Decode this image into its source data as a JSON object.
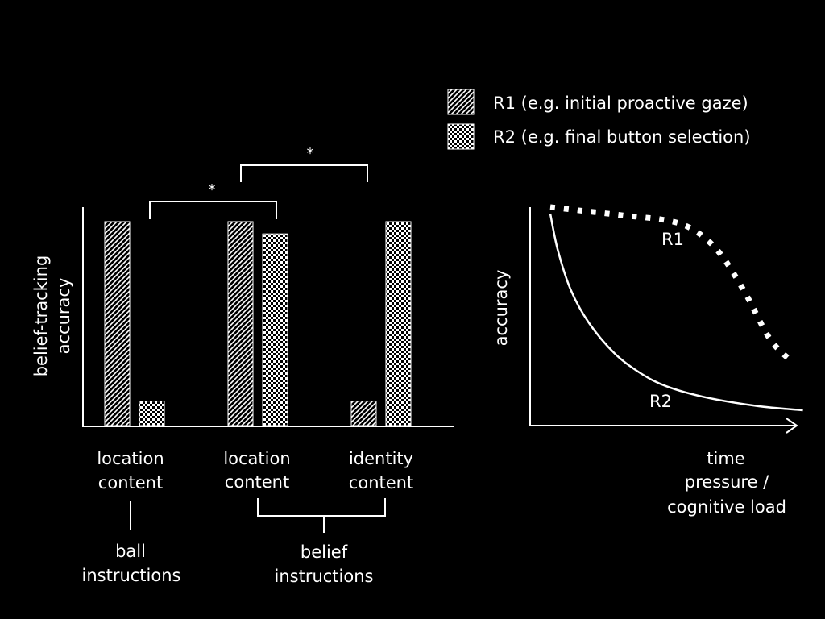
{
  "colors": {
    "background": "#000000",
    "foreground": "#ffffff"
  },
  "legend": {
    "placement": "top-right",
    "items": [
      {
        "key": "R1",
        "pattern": "hatch",
        "label": "R1 (e.g. initial proactive gaze)"
      },
      {
        "key": "R2",
        "pattern": "checker",
        "label": "R2 (e.g. final button selection)"
      }
    ]
  },
  "left_chart": {
    "ylabel_lines": [
      "belief-tracking",
      "accuracy"
    ],
    "ylim": [
      0,
      1
    ],
    "categories": [
      {
        "label_lines": [
          "location",
          "content"
        ]
      },
      {
        "label_lines": [
          "location",
          "content"
        ]
      },
      {
        "label_lines": [
          "identity",
          "content"
        ]
      }
    ],
    "groups": [
      {
        "label_lines": [
          "ball",
          "instructions"
        ],
        "categories": [
          0
        ]
      },
      {
        "label_lines": [
          "belief",
          "instructions"
        ],
        "categories": [
          1,
          2
        ]
      }
    ],
    "significance": [
      {
        "from": [
          0,
          "R2"
        ],
        "to": [
          1,
          "R2"
        ],
        "label": "*"
      },
      {
        "from": [
          1,
          "R1"
        ],
        "to": [
          2,
          "R1"
        ],
        "label": "*"
      }
    ]
  },
  "chart_data": [
    {
      "type": "bar",
      "categories": [
        "location content",
        "location content",
        "identity content"
      ],
      "series": [
        {
          "name": "R1",
          "values": [
            1.0,
            1.0,
            0.12
          ]
        },
        {
          "name": "R2",
          "values": [
            0.12,
            0.94,
            1.0
          ]
        }
      ],
      "ylabel": "belief-tracking accuracy",
      "ylim": [
        0,
        1
      ],
      "grid": false
    },
    {
      "type": "line",
      "xlabel": "time pressure / cognitive load",
      "ylabel": "accuracy",
      "xlim": [
        0,
        1
      ],
      "ylim": [
        0,
        1
      ],
      "series": [
        {
          "name": "R1",
          "style": "dotted",
          "x": [
            0.0,
            0.15,
            0.3,
            0.45,
            0.55,
            0.65,
            0.75,
            0.85,
            0.93
          ],
          "y": [
            1.0,
            0.98,
            0.96,
            0.94,
            0.9,
            0.8,
            0.62,
            0.4,
            0.3
          ]
        },
        {
          "name": "R2",
          "style": "solid",
          "x": [
            0.0,
            0.03,
            0.08,
            0.15,
            0.25,
            0.35,
            0.45,
            0.6,
            0.8,
            0.98
          ],
          "y": [
            0.97,
            0.8,
            0.62,
            0.47,
            0.33,
            0.24,
            0.18,
            0.13,
            0.09,
            0.07
          ]
        }
      ],
      "xlabel_lines": [
        "time",
        "pressure /",
        "cognitive load"
      ]
    }
  ]
}
